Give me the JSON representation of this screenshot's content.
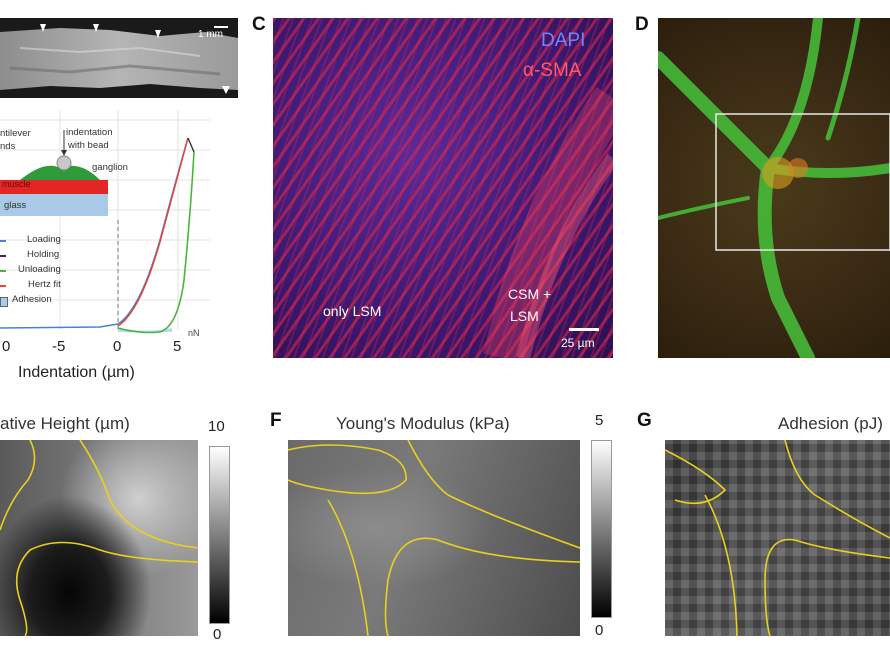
{
  "panels": {
    "a": {
      "scale_bar": "1 mm"
    },
    "b": {
      "schematic": {
        "cantilever": "ntilever",
        "beads": "nds",
        "indentation": [
          "indentation",
          "with bead"
        ],
        "ganglion": "ganglion",
        "muscle": "muscle",
        "glass": "glass"
      },
      "legend": [
        "Loading",
        "Holding",
        "Unloading",
        "Hertz fit",
        "Adhesion"
      ],
      "x_axis_label": "Indentation (µm)",
      "x_ticks": [
        "0",
        "-5",
        "0",
        "5"
      ],
      "corner_label": "nN"
    },
    "c": {
      "label": "C",
      "channel_dapi": "DAPI",
      "channel_sma": "α-SMA",
      "region_left": "only LSM",
      "region_right": [
        "CSM +",
        "LSM"
      ],
      "scale_bar": "25 µm"
    },
    "d": {
      "label": "D"
    },
    "e": {
      "title": "ative Height (µm)",
      "cbar_max": "10",
      "cbar_min": "0"
    },
    "f": {
      "label": "F",
      "title": "Young's Modulus (kPa)",
      "cbar_max": "5",
      "cbar_min": "0"
    },
    "g": {
      "label": "G",
      "title": "Adhesion (pJ)"
    }
  },
  "colors": {
    "dapi": "#5a6cf0",
    "sma": "#e8405a",
    "contour": "#e6d21e",
    "loading": "#4a7fd6",
    "unloading": "#49b63a",
    "hertz": "#e8452b"
  }
}
